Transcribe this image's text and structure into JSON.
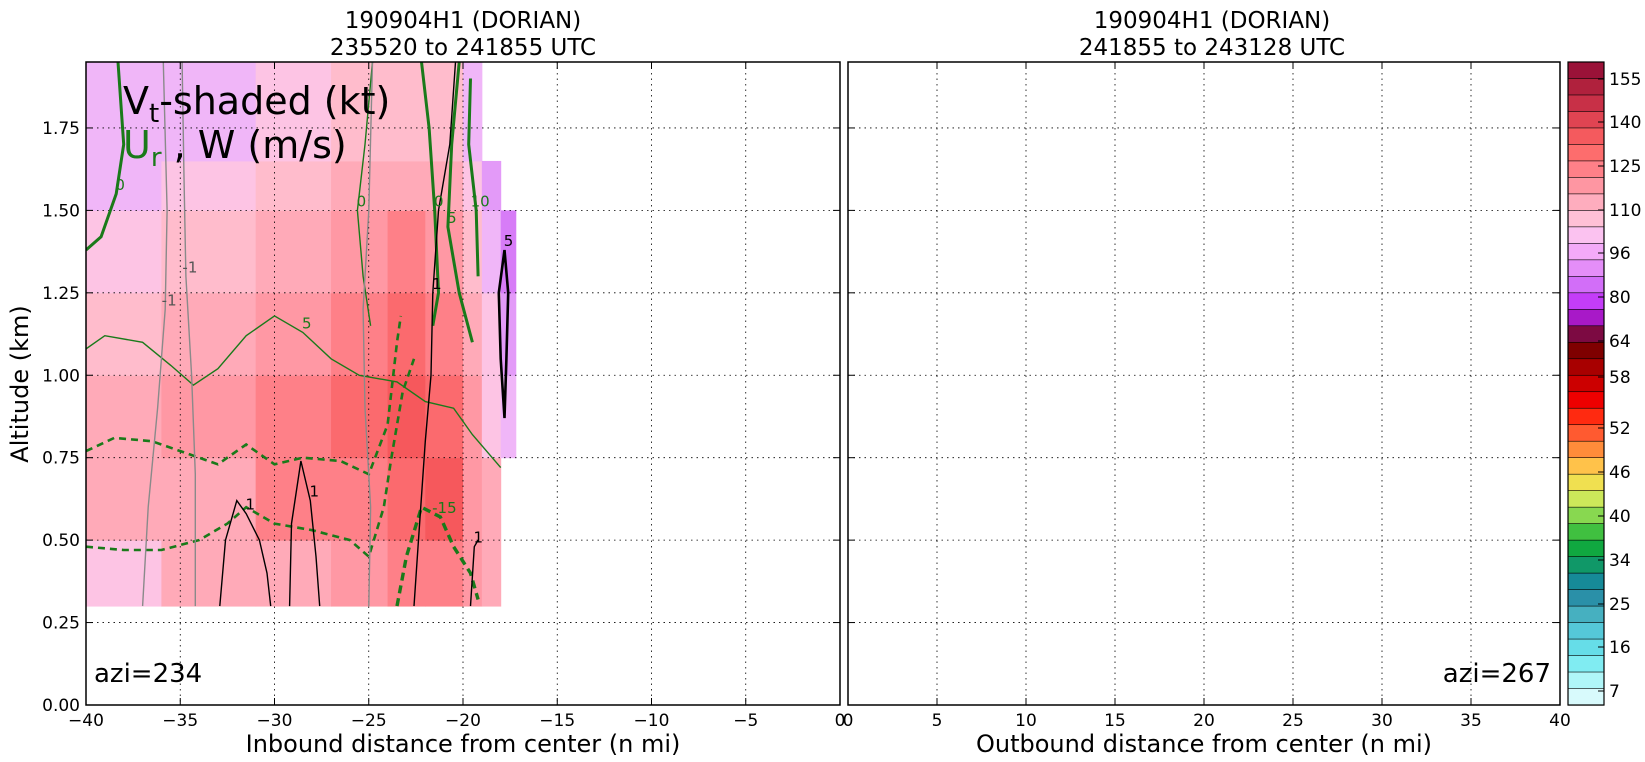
{
  "chart_data": [
    {
      "type": "contour",
      "title": [
        "190904H1 (DORIAN)",
        "235520 to 241855 UTC"
      ],
      "xlabel": "Inbound distance from center (n mi)",
      "ylabel": "Altitude (km)",
      "xlim": [
        -40,
        0
      ],
      "ylim": [
        0,
        1.95
      ],
      "xticks": [
        -40,
        -35,
        -30,
        -25,
        -20,
        -15,
        -10,
        -5,
        0
      ],
      "yticks": [
        0.0,
        0.25,
        0.5,
        0.75,
        1.0,
        1.25,
        1.5,
        1.75
      ],
      "ytick_labels": [
        "0.00",
        "0.25",
        "0.50",
        "0.75",
        "1.00",
        "1.25",
        "1.50",
        "1.75"
      ],
      "grid": true,
      "annotation": "azi=234",
      "legend_text": {
        "line1_main": "V",
        "line1_sub": "t",
        "line1_rest": "-shaded (kt)",
        "line2_main": "U",
        "line2_sub": "r",
        "line2_rest": " , W (m/s)"
      },
      "vt_fill_rows_y": [
        0.3,
        0.5,
        0.75,
        1.0,
        1.25,
        1.5,
        1.65,
        1.95
      ],
      "vt_fill_bands": [
        {
          "x0": -40,
          "x1": -36,
          "rows": [
            96,
            105,
            105,
            100,
            96,
            88,
            85
          ]
        },
        {
          "x0": -36,
          "x1": -31,
          "rows": [
            105,
            110,
            112,
            108,
            100,
            92,
            88
          ]
        },
        {
          "x0": -31,
          "x1": -27,
          "rows": [
            110,
            118,
            118,
            114,
            108,
            100,
            96
          ]
        },
        {
          "x0": -27,
          "x1": -24,
          "rows": [
            112,
            120,
            124,
            120,
            114,
            106,
            100
          ]
        },
        {
          "x0": -24,
          "x1": -22,
          "rows": [
            118,
            128,
            130,
            126,
            118,
            110,
            104
          ]
        },
        {
          "x0": -22,
          "x1": -20,
          "rows": [
            122,
            130,
            128,
            120,
            112,
            106,
            100
          ]
        },
        {
          "x0": -20,
          "x1": -19,
          "rows": [
            114,
            114,
            112,
            106,
            100,
            92,
            85
          ]
        },
        {
          "x0": -19,
          "x1": -18,
          "rows": [
            110,
            105,
            96,
            90,
            85,
            78,
            null
          ]
        },
        {
          "x0": -18,
          "x1": -17.2,
          "rows": [
            null,
            null,
            88,
            80,
            76,
            null,
            null
          ]
        }
      ],
      "ur_contours": [
        {
          "level": 0,
          "label": "0",
          "style": "solid-thick",
          "points": [
            [
              -40,
              1.38
            ],
            [
              -39.2,
              1.42
            ],
            [
              -38.4,
              1.55
            ],
            [
              -38,
              1.7
            ],
            [
              -38.3,
              1.95
            ]
          ]
        },
        {
          "level": 0,
          "label": "0",
          "style": "solid-thick",
          "points": [
            [
              -22.2,
              1.95
            ],
            [
              -21.8,
              1.75
            ],
            [
              -21.5,
              1.5
            ],
            [
              -21.3,
              1.25
            ],
            [
              -21.6,
              1.15
            ]
          ]
        },
        {
          "level": 5,
          "label": "5",
          "style": "solid-thick",
          "points": [
            [
              -20.2,
              1.95
            ],
            [
              -20.6,
              1.7
            ],
            [
              -20.8,
              1.45
            ],
            [
              -20.2,
              1.25
            ],
            [
              -19.5,
              1.1
            ]
          ]
        },
        {
          "level": 10,
          "label": "10",
          "style": "solid-thick",
          "points": [
            [
              -19.6,
              1.9
            ],
            [
              -19.7,
              1.7
            ],
            [
              -19.3,
              1.5
            ],
            [
              -19.2,
              1.3
            ]
          ]
        },
        {
          "level": 5,
          "label": "5",
          "style": "solid-thin",
          "points": [
            [
              -40,
              1.08
            ],
            [
              -39,
              1.12
            ],
            [
              -37,
              1.1
            ],
            [
              -35.5,
              1.03
            ],
            [
              -34.3,
              0.97
            ],
            [
              -33,
              1.02
            ],
            [
              -31.5,
              1.12
            ],
            [
              -30,
              1.18
            ],
            [
              -28.5,
              1.13
            ],
            [
              -27,
              1.05
            ],
            [
              -25.5,
              1.0
            ],
            [
              -23.5,
              0.98
            ],
            [
              -22,
              0.92
            ],
            [
              -20.5,
              0.9
            ],
            [
              -19.5,
              0.82
            ],
            [
              -18,
              0.72
            ]
          ]
        },
        {
          "level": 0,
          "label": "0",
          "style": "solid-thin",
          "points": [
            [
              -24.8,
              1.95
            ],
            [
              -25.2,
              1.7
            ],
            [
              -25.6,
              1.5
            ],
            [
              -25.3,
              1.3
            ],
            [
              -24.9,
              1.15
            ]
          ]
        },
        {
          "level": -5,
          "label": "",
          "style": "dashed",
          "points": [
            [
              -40,
              0.77
            ],
            [
              -38.5,
              0.81
            ],
            [
              -36.5,
              0.8
            ],
            [
              -34.5,
              0.76
            ],
            [
              -33,
              0.73
            ],
            [
              -31.5,
              0.79
            ],
            [
              -30,
              0.73
            ],
            [
              -28.5,
              0.75
            ],
            [
              -26.5,
              0.74
            ],
            [
              -25,
              0.7
            ],
            [
              -24,
              0.85
            ],
            [
              -23.5,
              1.1
            ],
            [
              -23.3,
              1.18
            ]
          ]
        },
        {
          "level": -10,
          "label": "",
          "style": "dashed",
          "points": [
            [
              -40,
              0.48
            ],
            [
              -38,
              0.47
            ],
            [
              -36,
              0.47
            ],
            [
              -34,
              0.5
            ],
            [
              -32.5,
              0.55
            ],
            [
              -31.5,
              0.6
            ],
            [
              -30,
              0.55
            ],
            [
              -28,
              0.53
            ],
            [
              -26,
              0.5
            ],
            [
              -25,
              0.45
            ],
            [
              -24.2,
              0.6
            ],
            [
              -23.8,
              0.75
            ],
            [
              -23.2,
              0.95
            ],
            [
              -22.6,
              1.05
            ]
          ]
        },
        {
          "level": -15,
          "label": "-15",
          "style": "dashed-thick",
          "points": [
            [
              -23.5,
              0.3
            ],
            [
              -23,
              0.45
            ],
            [
              -22.2,
              0.6
            ],
            [
              -21.2,
              0.57
            ],
            [
              -20.5,
              0.48
            ],
            [
              -19.6,
              0.4
            ],
            [
              -19.2,
              0.32
            ]
          ]
        }
      ],
      "w_contours": [
        {
          "level": -1,
          "label": "-1",
          "color": "gray",
          "points": [
            [
              -37,
              0.3
            ],
            [
              -36.7,
              0.6
            ],
            [
              -36.2,
              0.9
            ],
            [
              -35.8,
              1.2
            ],
            [
              -35.7,
              1.5
            ],
            [
              -35.9,
              1.95
            ]
          ]
        },
        {
          "level": -1,
          "label": "-1",
          "color": "gray",
          "points": [
            [
              -34.2,
              0.3
            ],
            [
              -34.2,
              0.7
            ],
            [
              -34.4,
              1.0
            ],
            [
              -34.7,
              1.3
            ],
            [
              -34.8,
              1.6
            ],
            [
              -34.9,
              1.95
            ]
          ]
        },
        {
          "level": -1,
          "label": "",
          "color": "gray",
          "points": [
            [
              -25,
              0.3
            ],
            [
              -24.9,
              0.6
            ],
            [
              -25.2,
              0.9
            ],
            [
              -25.3,
              1.2
            ],
            [
              -25,
              1.5
            ],
            [
              -24.8,
              1.95
            ]
          ]
        },
        {
          "level": 1,
          "label": "1",
          "color": "black",
          "points": [
            [
              -32.9,
              0.3
            ],
            [
              -32.6,
              0.5
            ],
            [
              -32,
              0.62
            ],
            [
              -31.5,
              0.58
            ],
            [
              -30.8,
              0.5
            ],
            [
              -30.4,
              0.4
            ],
            [
              -30.2,
              0.3
            ]
          ]
        },
        {
          "level": 1,
          "label": "1",
          "color": "black",
          "points": [
            [
              -29.2,
              0.3
            ],
            [
              -29.1,
              0.55
            ],
            [
              -28.6,
              0.74
            ],
            [
              -28.1,
              0.62
            ],
            [
              -27.8,
              0.45
            ],
            [
              -27.6,
              0.3
            ]
          ]
        },
        {
          "level": 1,
          "label": "1",
          "color": "black",
          "points": [
            [
              -22.6,
              0.3
            ],
            [
              -22.3,
              0.55
            ],
            [
              -22,
              0.8
            ],
            [
              -21.7,
              1.0
            ],
            [
              -21.6,
              1.25
            ],
            [
              -21.3,
              1.5
            ],
            [
              -20.7,
              1.7
            ],
            [
              -20.4,
              1.95
            ]
          ]
        },
        {
          "level": 1,
          "label": "1",
          "color": "black",
          "points": [
            [
              -19.6,
              0.3
            ],
            [
              -19.4,
              0.48
            ],
            [
              -19.2,
              0.5
            ]
          ]
        },
        {
          "level": 5,
          "label": "5",
          "color": "black-thick",
          "points": [
            [
              -17.8,
              0.87
            ],
            [
              -17.7,
              1.05
            ],
            [
              -17.6,
              1.25
            ],
            [
              -17.8,
              1.38
            ],
            [
              -18.1,
              1.25
            ],
            [
              -18,
              1.05
            ],
            [
              -17.8,
              0.87
            ]
          ]
        }
      ]
    },
    {
      "type": "contour",
      "title": [
        "190904H1 (DORIAN)",
        "241855 to 243128 UTC"
      ],
      "xlabel": "Outbound distance from center (n mi)",
      "xlim": [
        0,
        40
      ],
      "ylim": [
        0,
        1.95
      ],
      "xticks": [
        0,
        5,
        10,
        15,
        20,
        25,
        30,
        35,
        40
      ],
      "grid": true,
      "annotation": "azi=267"
    }
  ],
  "colorbar": {
    "labels": [
      "155",
      "140",
      "125",
      "110",
      "96",
      "80",
      "64",
      "58",
      "52",
      "46",
      "40",
      "34",
      "25",
      "16",
      "7"
    ],
    "colors_top_to_bottom": [
      "#9a1238",
      "#b0213d",
      "#c83047",
      "#e04452",
      "#f45a5e",
      "#fd6d6d",
      "#fe8088",
      "#fe96a2",
      "#feadbe",
      "#ffc0d6",
      "#fbc2f0",
      "#f3aaf8",
      "#e48ef8",
      "#d26ef8",
      "#c43df8",
      "#a819c8",
      "#7c0a42",
      "#7f0000",
      "#a80000",
      "#cc0000",
      "#ee0000",
      "#ff2a10",
      "#ff5a30",
      "#ff8c3a",
      "#ffc24a",
      "#f0e050",
      "#cce85a",
      "#88d850",
      "#40c040",
      "#10a840",
      "#109868",
      "#168a98",
      "#2a90a8",
      "#46b0c0",
      "#55c8d8",
      "#66dde8",
      "#80ecf2",
      "#b0f6f8",
      "#d8fafc"
    ]
  }
}
